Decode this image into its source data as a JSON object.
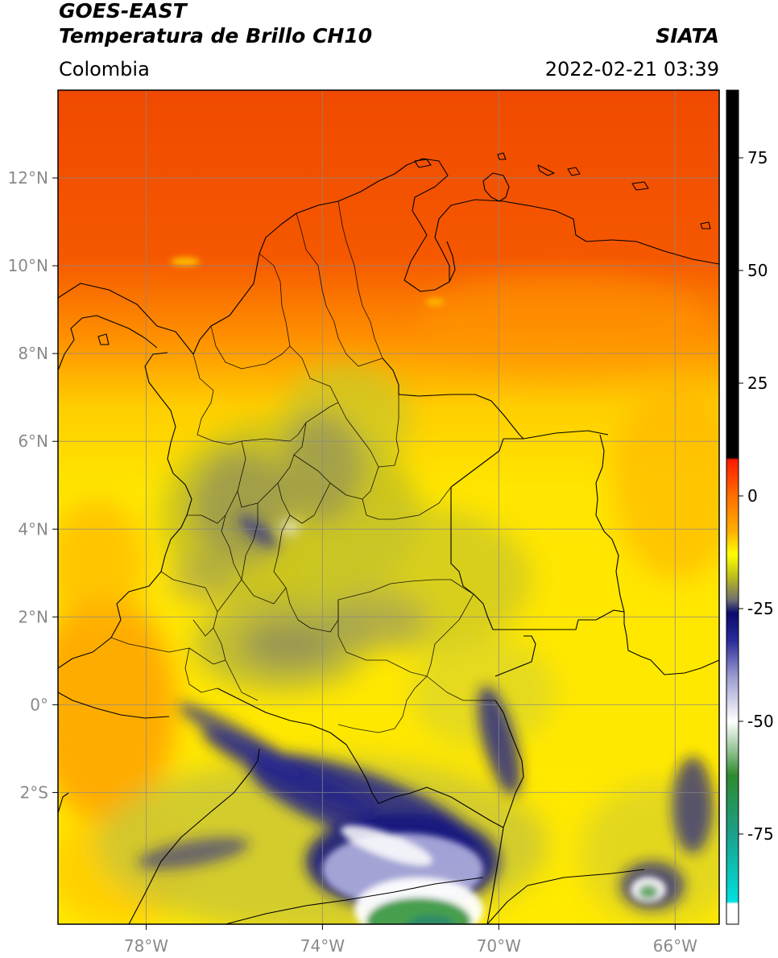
{
  "header": {
    "satellite": "GOES-EAST",
    "product": "Temperatura de Brillo CH10",
    "org": "SIATA",
    "region": "Colombia",
    "timestamp": "2022-02-21 03:39"
  },
  "map": {
    "lon_range": [
      -80,
      -65
    ],
    "lat_range": [
      -5,
      14
    ],
    "lon_ticks": [
      {
        "value": -78,
        "label": "78°W"
      },
      {
        "value": -74,
        "label": "74°W"
      },
      {
        "value": -70,
        "label": "70°W"
      },
      {
        "value": -66,
        "label": "66°W"
      }
    ],
    "lat_ticks": [
      {
        "value": 12,
        "label": "12°N"
      },
      {
        "value": 10,
        "label": "10°N"
      },
      {
        "value": 8,
        "label": "8°N"
      },
      {
        "value": 6,
        "label": "6°N"
      },
      {
        "value": 4,
        "label": "4°N"
      },
      {
        "value": 2,
        "label": "2°N"
      },
      {
        "value": 0,
        "label": "0°"
      },
      {
        "value": -2,
        "label": "2°S"
      }
    ],
    "grid": true,
    "colors": {
      "warm": "#f04a00",
      "orange": "#ff9a00",
      "yellow": "#ffff00",
      "olive": "#c8c820",
      "gray": "#8a8a70",
      "navy": "#14147a",
      "white": "#ffffff",
      "green": "#3c9640",
      "border": "#000000",
      "grid_line": "#888888"
    }
  },
  "colorbar": {
    "range": [
      -95,
      90
    ],
    "ticks": [
      {
        "value": 75,
        "label": "75"
      },
      {
        "value": 50,
        "label": "50"
      },
      {
        "value": 25,
        "label": "25"
      },
      {
        "value": 0,
        "label": "0"
      },
      {
        "value": -25,
        "label": "-25"
      },
      {
        "value": -50,
        "label": "-50"
      },
      {
        "value": -75,
        "label": "-75"
      }
    ],
    "stops": [
      {
        "value": 90,
        "color": "#000000"
      },
      {
        "value": 8.5,
        "color": "#000000"
      },
      {
        "value": 8,
        "color": "#ff1a00"
      },
      {
        "value": 0,
        "color": "#ff6e00"
      },
      {
        "value": -8,
        "color": "#ffb000"
      },
      {
        "value": -13,
        "color": "#ffff00"
      },
      {
        "value": -18,
        "color": "#bcbc1c"
      },
      {
        "value": -23,
        "color": "#707070"
      },
      {
        "value": -26,
        "color": "#0a0a6e"
      },
      {
        "value": -32,
        "color": "#2a2a9a"
      },
      {
        "value": -40,
        "color": "#9a9ad0"
      },
      {
        "value": -50,
        "color": "#ffffff"
      },
      {
        "value": -56,
        "color": "#9ac89a"
      },
      {
        "value": -62,
        "color": "#2e8a2e"
      },
      {
        "value": -75,
        "color": "#1aa08a"
      },
      {
        "value": -90,
        "color": "#00e0e0"
      },
      {
        "value": -90.5,
        "color": "#ffffff"
      },
      {
        "value": -95,
        "color": "#ffffff"
      }
    ]
  }
}
